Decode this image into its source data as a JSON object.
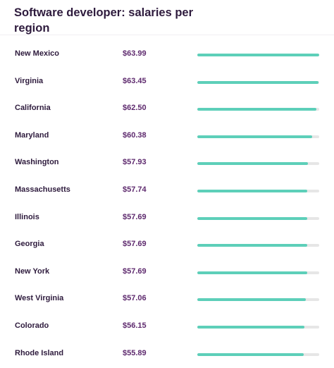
{
  "header": {
    "title": "Software developer: salaries per region"
  },
  "colors": {
    "title": "#2e1b3d",
    "salary": "#5e2a6e",
    "bar_fill": "#5dcfb9",
    "bar_track": "#e6e6e6"
  },
  "salaries": [
    {
      "region": "New Mexico",
      "salary": "$63.99",
      "fraction": 1.0
    },
    {
      "region": "Virginia",
      "salary": "$63.45",
      "fraction": 0.992
    },
    {
      "region": "California",
      "salary": "$62.50",
      "fraction": 0.977
    },
    {
      "region": "Maryland",
      "salary": "$60.38",
      "fraction": 0.944
    },
    {
      "region": "Washington",
      "salary": "$57.93",
      "fraction": 0.905
    },
    {
      "region": "Massachusetts",
      "salary": "$57.74",
      "fraction": 0.902
    },
    {
      "region": "Illinois",
      "salary": "$57.69",
      "fraction": 0.902
    },
    {
      "region": "Georgia",
      "salary": "$57.69",
      "fraction": 0.902
    },
    {
      "region": "New York",
      "salary": "$57.69",
      "fraction": 0.902
    },
    {
      "region": "West Virginia",
      "salary": "$57.06",
      "fraction": 0.892
    },
    {
      "region": "Colorado",
      "salary": "$56.15",
      "fraction": 0.877
    },
    {
      "region": "Rhode Island",
      "salary": "$55.89",
      "fraction": 0.873
    }
  ]
}
